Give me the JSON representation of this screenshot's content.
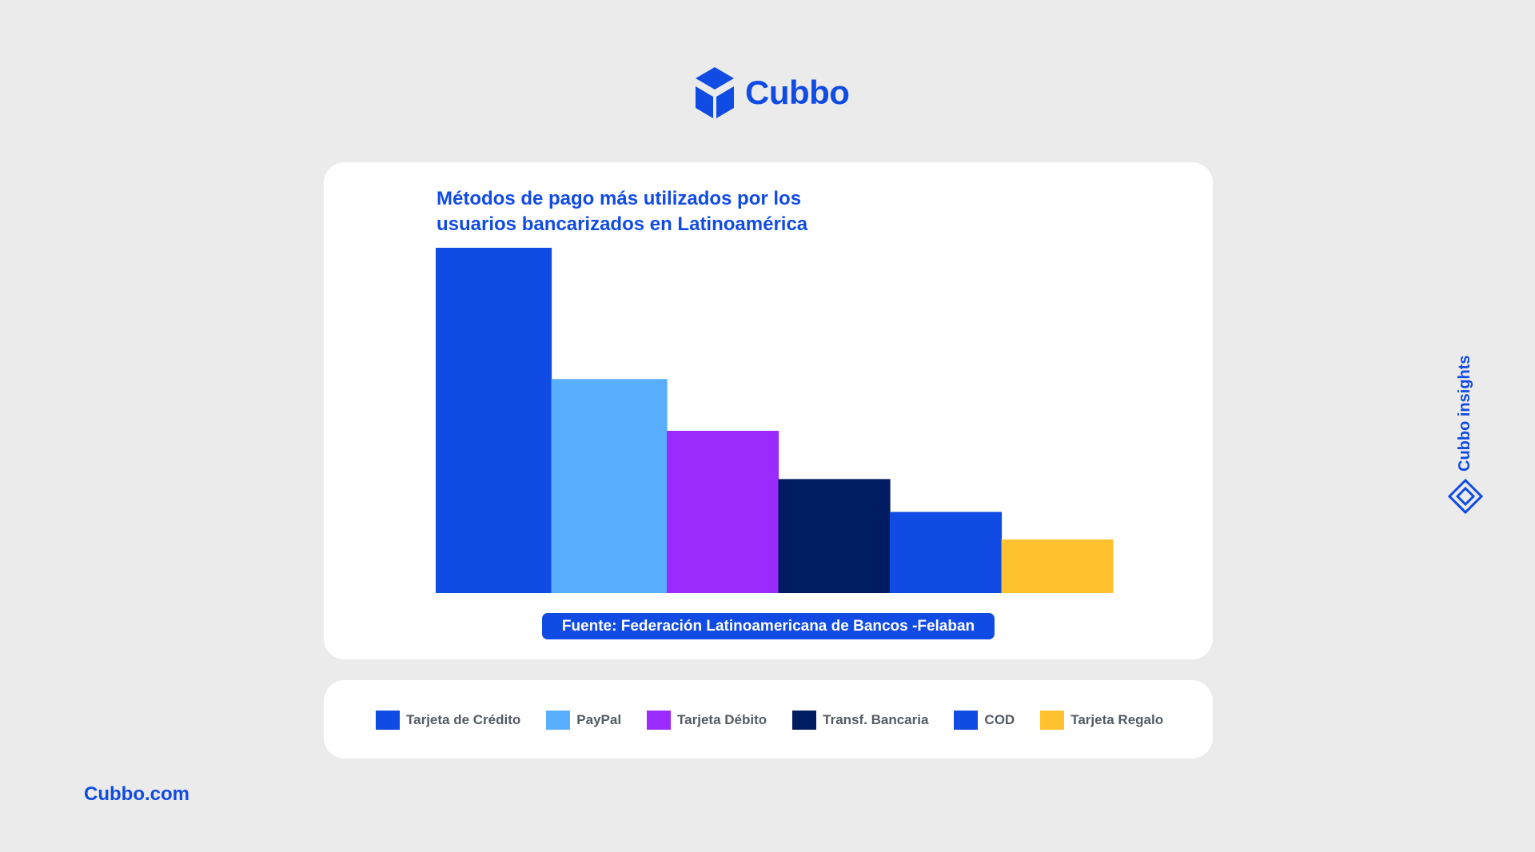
{
  "brand": {
    "name": "Cubbo",
    "site": "Cubbo.com",
    "side_label": "Cubbo insights",
    "accent": "#104be3"
  },
  "chart_data": {
    "type": "bar",
    "title_lines": [
      "Métodos de pago más utilizados por los",
      "usuarios bancarizados en Latinoamérica"
    ],
    "categories": [
      "Tarjeta de Crédito",
      "PayPal",
      "Tarjeta Débito",
      "Transf. Bancaria",
      "COD",
      "Tarjeta Regalo"
    ],
    "values": [
      100,
      62,
      47,
      33,
      23.5,
      15.5
    ],
    "colors": [
      "#104be3",
      "#5aaefe",
      "#9b2bfd",
      "#001c61",
      "#104be3",
      "#fdc22d"
    ],
    "ylim": [
      0,
      100
    ],
    "grid": false,
    "legend_position": "bottom",
    "source": "Fuente: Federación Latinoamericana de Bancos -Felaban"
  }
}
